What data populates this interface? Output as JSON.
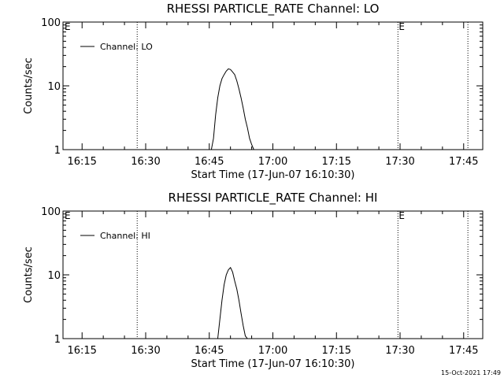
{
  "chart_data": [
    {
      "type": "line",
      "title": "RHESSI PARTICLE_RATE Channel: LO",
      "xlabel": "Start Time (17-Jun-07 16:10:30)",
      "ylabel": "Counts/sec",
      "y_scale": "log",
      "ylim": [
        1,
        100
      ],
      "xlim": [
        "16:10:30",
        "17:49:30"
      ],
      "x_ticks": [
        "16:15",
        "16:30",
        "16:45",
        "17:00",
        "17:15",
        "17:30",
        "17:45"
      ],
      "y_ticks": [
        "1",
        "10",
        "100"
      ],
      "legend_position": "top-left",
      "series": [
        {
          "name": "Channel: LO",
          "x": [
            "16:45:30",
            "16:46:00",
            "16:46:30",
            "16:47:00",
            "16:47:30",
            "16:48:00",
            "16:48:30",
            "16:49:00",
            "16:49:30",
            "16:50:00",
            "16:50:30",
            "16:51:00",
            "16:51:30",
            "16:52:00",
            "16:52:30",
            "16:53:00",
            "16:53:30",
            "16:54:00",
            "16:54:30",
            "16:55:00",
            "16:55:30"
          ],
          "values": [
            1,
            1.5,
            3.5,
            6.5,
            10,
            13,
            15,
            17,
            18.5,
            18,
            16.5,
            15,
            12,
            9,
            6.5,
            4.5,
            3,
            2.2,
            1.5,
            1.2,
            1
          ]
        }
      ],
      "markers": [
        {
          "time": "16:28:00",
          "label": ""
        },
        {
          "time": "17:29:30",
          "label": "E"
        },
        {
          "time": "17:46:00",
          "label": ""
        }
      ],
      "corner_label": "E"
    },
    {
      "type": "line",
      "title": "RHESSI PARTICLE_RATE Channel: HI",
      "xlabel": "Start Time (17-Jun-07 16:10:30)",
      "ylabel": "Counts/sec",
      "y_scale": "log",
      "ylim": [
        1,
        100
      ],
      "xlim": [
        "16:10:30",
        "17:49:30"
      ],
      "x_ticks": [
        "16:15",
        "16:30",
        "16:45",
        "17:00",
        "17:15",
        "17:30",
        "17:45"
      ],
      "y_ticks": [
        "1",
        "10",
        "100"
      ],
      "legend_position": "top-left",
      "series": [
        {
          "name": "Channel: HI",
          "x": [
            "16:47:00",
            "16:47:30",
            "16:48:00",
            "16:48:30",
            "16:49:00",
            "16:49:30",
            "16:50:00",
            "16:50:30",
            "16:51:00",
            "16:51:30",
            "16:52:00",
            "16:52:30",
            "16:53:00",
            "16:53:30",
            "16:54:00"
          ],
          "values": [
            1,
            2,
            4,
            7,
            10,
            12,
            13,
            11,
            8,
            6,
            4,
            2.5,
            1.6,
            1.1,
            1
          ]
        }
      ],
      "markers": [
        {
          "time": "16:28:00",
          "label": ""
        },
        {
          "time": "17:29:30",
          "label": "E"
        },
        {
          "time": "17:46:00",
          "label": ""
        }
      ],
      "corner_label": "E"
    }
  ],
  "footer": {
    "timestamp": "15-Oct-2021 17:49"
  },
  "colors": {
    "line": "#000000",
    "background": "#ffffff"
  }
}
